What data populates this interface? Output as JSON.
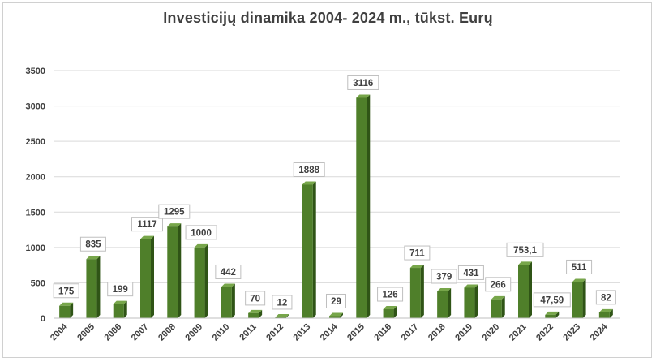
{
  "chart_data": {
    "type": "bar",
    "title": "Investicijų dinamika 2004- 2024 m., tūkst. Eurų",
    "xlabel": "",
    "ylabel": "",
    "ylim": [
      0,
      3500
    ],
    "yticks": [
      "0",
      "500",
      "1000",
      "1500",
      "2000",
      "2500",
      "3000",
      "3500"
    ],
    "grid": true,
    "legend": "none",
    "categories": [
      "2004",
      "2005",
      "2006",
      "2007",
      "2008",
      "2009",
      "2010",
      "2011",
      "2012",
      "2013",
      "2014",
      "2015",
      "2016",
      "2017",
      "2018",
      "2019",
      "2020",
      "2021",
      "2022",
      "2023",
      "2024"
    ],
    "values": [
      175,
      835,
      199,
      1117,
      1295,
      1000,
      442,
      70,
      12,
      1888,
      29,
      3116,
      126,
      711,
      379,
      431,
      266,
      753.1,
      47.59,
      511,
      82
    ],
    "data_labels": [
      "175",
      "835",
      "199",
      "1117",
      "1295",
      "1000",
      "442",
      "70",
      "12",
      "1888",
      "29",
      "3116",
      "126",
      "711",
      "379",
      "431",
      "266",
      "753,1",
      "47,59",
      "511",
      "82"
    ],
    "colors": {
      "bar_front": "#4f7f2a",
      "bar_side": "#2f5416",
      "bar_top": "#77a64a",
      "grid": "#d9d9d9",
      "text": "#404040"
    }
  }
}
